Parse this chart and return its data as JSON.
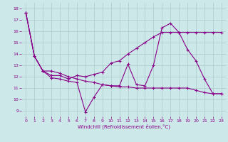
{
  "xlabel": "Windchill (Refroidissement éolien,°C)",
  "xlim": [
    -0.5,
    23.5
  ],
  "ylim": [
    8.5,
    18.5
  ],
  "yticks": [
    9,
    10,
    11,
    12,
    13,
    14,
    15,
    16,
    17,
    18
  ],
  "xticks": [
    0,
    1,
    2,
    3,
    4,
    5,
    6,
    7,
    8,
    9,
    10,
    11,
    12,
    13,
    14,
    15,
    16,
    17,
    18,
    19,
    20,
    21,
    22,
    23
  ],
  "background_color": "#cde8e8",
  "line_color": "#880088",
  "grid_color": "#aacccc",
  "line1_x": [
    0,
    1,
    2,
    3,
    4,
    5,
    6,
    7,
    8,
    9,
    10,
    11,
    12,
    13,
    14,
    15,
    16,
    17,
    18,
    19,
    20,
    21,
    22,
    23
  ],
  "line1_y": [
    17.6,
    13.8,
    12.5,
    11.9,
    11.8,
    11.6,
    11.5,
    8.9,
    10.2,
    11.3,
    11.2,
    11.2,
    13.1,
    11.3,
    11.2,
    13.0,
    16.3,
    16.7,
    15.9,
    14.4,
    13.4,
    11.8,
    10.5,
    10.5
  ],
  "line2_x": [
    0,
    1,
    2,
    3,
    4,
    5,
    6,
    7,
    8,
    9,
    10,
    11,
    12,
    13,
    14,
    15,
    16,
    17,
    18,
    19,
    20,
    21,
    22,
    23
  ],
  "line2_y": [
    17.6,
    13.8,
    12.5,
    12.1,
    12.1,
    11.8,
    12.1,
    12.0,
    12.2,
    12.4,
    13.2,
    13.4,
    14.0,
    14.5,
    15.0,
    15.5,
    15.9,
    15.9,
    15.9,
    15.9,
    15.9,
    15.9,
    15.9,
    15.9
  ],
  "line3_x": [
    0,
    1,
    2,
    3,
    4,
    5,
    6,
    7,
    8,
    9,
    10,
    11,
    12,
    13,
    14,
    15,
    16,
    17,
    18,
    19,
    20,
    21,
    22,
    23
  ],
  "line3_y": [
    17.6,
    13.8,
    12.5,
    12.5,
    12.3,
    12.0,
    11.8,
    11.6,
    11.5,
    11.3,
    11.2,
    11.1,
    11.1,
    11.0,
    11.0,
    11.0,
    11.0,
    11.0,
    11.0,
    11.0,
    10.8,
    10.6,
    10.5,
    10.5
  ]
}
